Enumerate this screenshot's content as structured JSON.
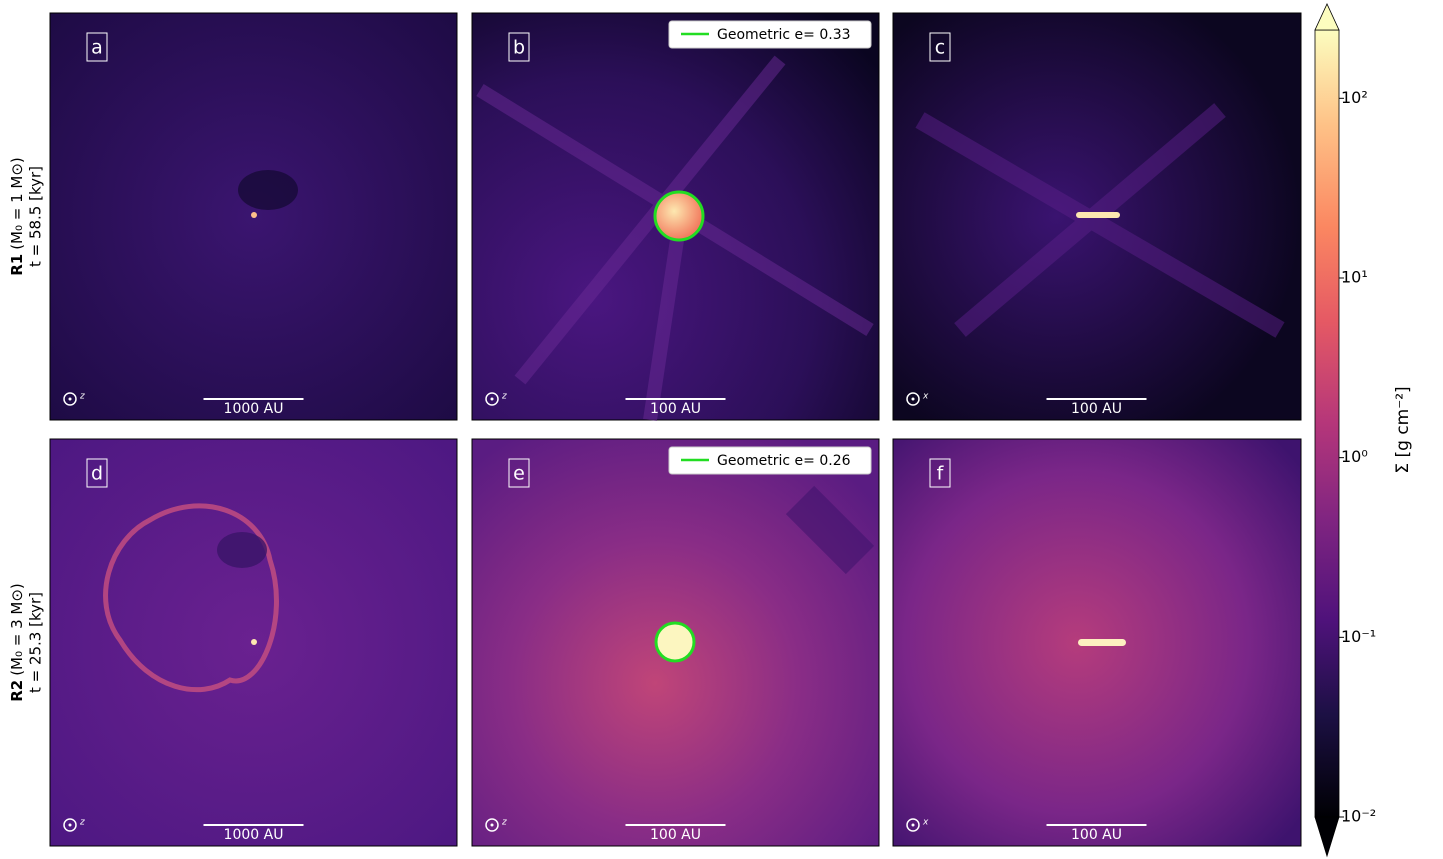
{
  "row_labels": [
    {
      "run": "R1",
      "mass": "(M₀ = 1 M⊙)",
      "time": "t = 58.5 [kyr]"
    },
    {
      "run": "R2",
      "mass": "(M₀ = 3 M⊙)",
      "time": "t = 25.3 [kyr]"
    }
  ],
  "panels": [
    {
      "letter": "a",
      "scale_bar": "1000 AU",
      "axis": "z"
    },
    {
      "letter": "b",
      "scale_bar": "100 AU",
      "axis": "z",
      "legend": "Geometric e= 0.33"
    },
    {
      "letter": "c",
      "scale_bar": "100 AU",
      "axis": "x"
    },
    {
      "letter": "d",
      "scale_bar": "1000 AU",
      "axis": "z"
    },
    {
      "letter": "e",
      "scale_bar": "100 AU",
      "axis": "z",
      "legend": "Geometric e= 0.26"
    },
    {
      "letter": "f",
      "scale_bar": "100 AU",
      "axis": "x"
    }
  ],
  "colorbar": {
    "label": "Σ [g cm⁻²]",
    "log_scale": true,
    "lim": [
      0.01,
      240
    ],
    "ticks": [
      {
        "value": 0.01,
        "label": "10⁻²"
      },
      {
        "value": 0.1,
        "label": "10⁻¹"
      },
      {
        "value": 1,
        "label": "10⁰"
      },
      {
        "value": 10,
        "label": "10¹"
      },
      {
        "value": 100,
        "label": "10²"
      }
    ]
  }
}
